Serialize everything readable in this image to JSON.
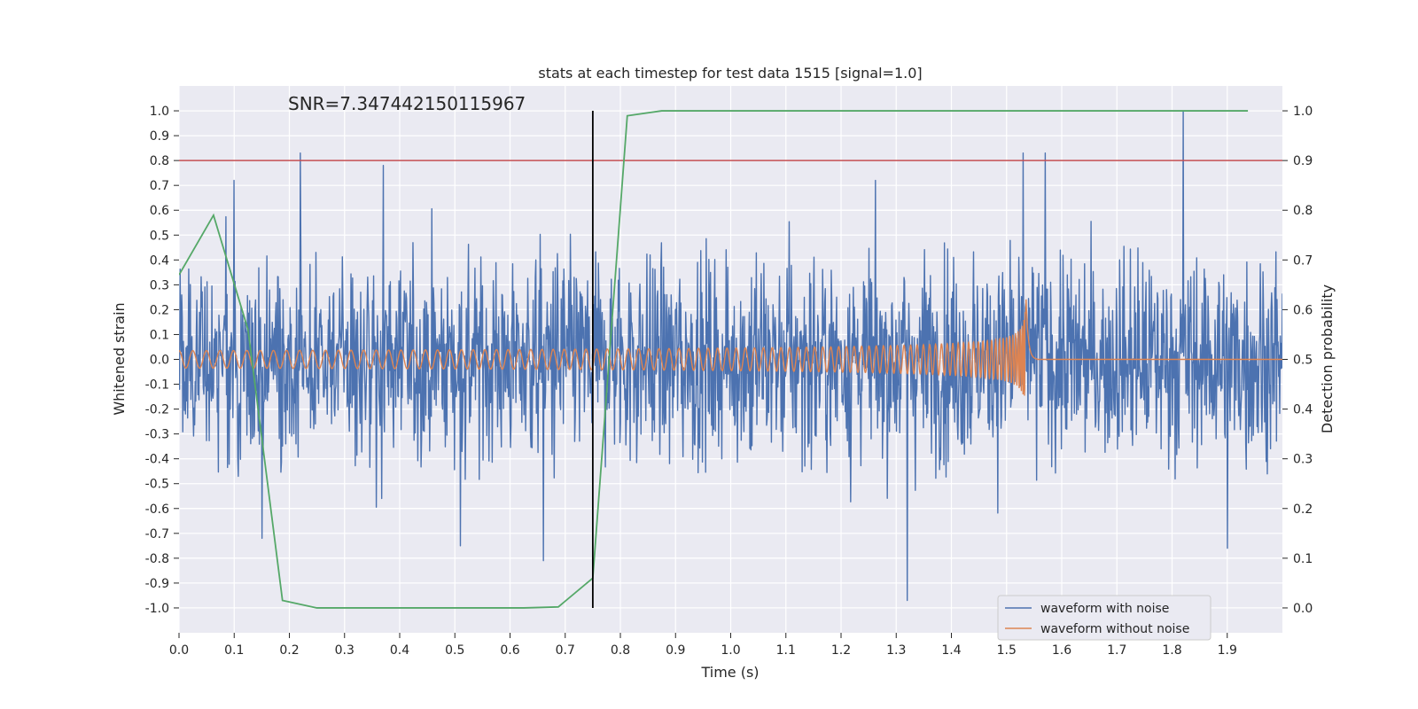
{
  "chart_data": {
    "type": "line",
    "title": "stats at each timestep for test data 1515 [signal=1.0]",
    "xlabel": "Time (s)",
    "ylabel": "Whitened strain",
    "ylabel_right": "Detection probability",
    "annotation": "SNR=7.347442150115967",
    "xlim": [
      0.0,
      2.0
    ],
    "ylim": [
      -1.1,
      1.1
    ],
    "ylim_right": [
      -0.05,
      1.05
    ],
    "grid": true,
    "legend_position": "lower-right",
    "xticks": [
      "0.0",
      "0.1",
      "0.2",
      "0.3",
      "0.4",
      "0.5",
      "0.6",
      "0.7",
      "0.8",
      "0.9",
      "1.0",
      "1.1",
      "1.2",
      "1.3",
      "1.4",
      "1.5",
      "1.6",
      "1.7",
      "1.8",
      "1.9"
    ],
    "yticks": [
      "1.0",
      "0.9",
      "0.8",
      "0.7",
      "0.6",
      "0.5",
      "0.4",
      "0.3",
      "0.2",
      "0.1",
      "0.0",
      "-0.1",
      "-0.2",
      "-0.3",
      "-0.4",
      "-0.5",
      "-0.6",
      "-0.7",
      "-0.8",
      "-0.9",
      "-1.0"
    ],
    "yticks_right": [
      "1.0",
      "0.9",
      "0.8",
      "0.7",
      "0.6",
      "0.5",
      "0.4",
      "0.3",
      "0.2",
      "0.1",
      "0.0"
    ],
    "threshold": {
      "y": 0.9,
      "axis": "right",
      "color": "#c44e52"
    },
    "marker_time": 0.75,
    "series": [
      {
        "name": "waveform with noise",
        "axis": "left",
        "color": "#4c72b0",
        "kind": "noise",
        "x_range": [
          0.0,
          2.0
        ],
        "sample_count": 2048,
        "approx_amplitude": 0.3,
        "peaks": [
          {
            "x": 0.22,
            "y": 0.83
          },
          {
            "x": 0.37,
            "y": 0.78
          },
          {
            "x": 0.1,
            "y": 0.72
          },
          {
            "x": 1.53,
            "y": 0.83
          },
          {
            "x": 1.57,
            "y": 0.83
          },
          {
            "x": 1.82,
            "y": 1.0
          },
          {
            "x": 1.32,
            "y": -0.97
          },
          {
            "x": 0.15,
            "y": -0.72
          },
          {
            "x": 0.51,
            "y": -0.75
          },
          {
            "x": 0.66,
            "y": -0.81
          },
          {
            "x": 1.9,
            "y": -0.76
          }
        ]
      },
      {
        "name": "waveform without noise",
        "axis": "left",
        "color": "#dd8452",
        "kind": "chirp",
        "x_range": [
          0.0,
          2.0
        ],
        "start_frequency_hz": 40,
        "start_amplitude": 0.035,
        "peak_time": 1.535,
        "peak_amplitude": 0.28
      },
      {
        "name": "detection probability",
        "axis": "right",
        "color": "#55a868",
        "x": [
          0.0,
          0.0625,
          0.125,
          0.1875,
          0.25,
          0.3125,
          0.375,
          0.4375,
          0.5,
          0.5625,
          0.625,
          0.6875,
          0.75,
          0.8125,
          0.875,
          0.9375,
          1.0,
          1.0625,
          1.125,
          1.1875,
          1.25,
          1.3125,
          1.375,
          1.4375,
          1.5,
          1.5625,
          1.625,
          1.6875,
          1.75,
          1.8125,
          1.875,
          1.9375
        ],
        "values": [
          0.67,
          0.79,
          0.56,
          0.015,
          0.0,
          0.0,
          0.0,
          0.0,
          0.0,
          0.0,
          0.0,
          0.002,
          0.06,
          0.99,
          1.0,
          1.0,
          1.0,
          1.0,
          1.0,
          1.0,
          1.0,
          1.0,
          1.0,
          1.0,
          1.0,
          1.0,
          1.0,
          1.0,
          1.0,
          1.0,
          1.0,
          1.0
        ]
      }
    ]
  }
}
